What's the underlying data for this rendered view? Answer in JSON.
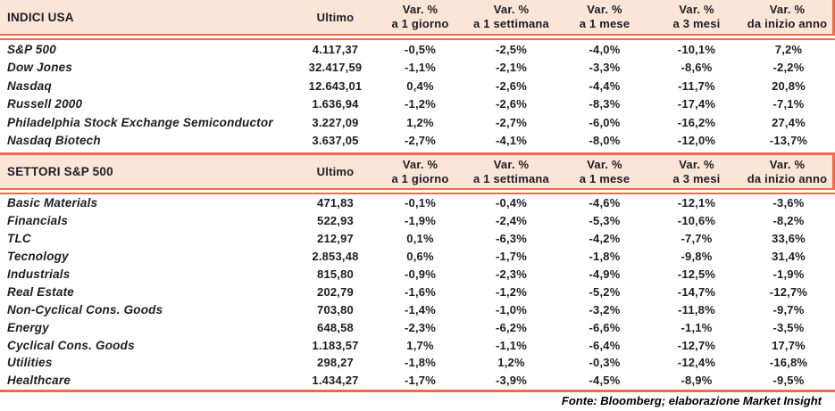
{
  "colors": {
    "band_bg": "#FBE5D6",
    "separator_line": "#F2694E",
    "text": "#1C1C26"
  },
  "footer": "Fonte: Bloomberg; elaborazione Market Insight",
  "chart_data": [
    {
      "type": "table",
      "title": "INDICI USA",
      "ultimo_label": "Ultimo",
      "var_label": "Var. %",
      "period_labels": [
        "a 1 giorno",
        "a 1 settimana",
        "a 1 mese",
        "a 3 mesi",
        "da inizio anno"
      ],
      "rows": [
        {
          "name": "S&P 500",
          "ultimo": "4.117,37",
          "vars": [
            "-0,5%",
            "-2,5%",
            "-4,0%",
            "-10,1%",
            "7,2%"
          ]
        },
        {
          "name": "Dow Jones",
          "ultimo": "32.417,59",
          "vars": [
            "-1,1%",
            "-2,1%",
            "-3,3%",
            "-8,6%",
            "-2,2%"
          ]
        },
        {
          "name": "Nasdaq",
          "ultimo": "12.643,01",
          "vars": [
            "0,4%",
            "-2,6%",
            "-4,4%",
            "-11,7%",
            "20,8%"
          ]
        },
        {
          "name": "Russell 2000",
          "ultimo": "1.636,94",
          "vars": [
            "-1,2%",
            "-2,6%",
            "-8,3%",
            "-17,4%",
            "-7,1%"
          ]
        },
        {
          "name": "Philadelphia Stock Exchange Semiconductor",
          "ultimo": "3.227,09",
          "vars": [
            "1,2%",
            "-2,7%",
            "-6,0%",
            "-16,2%",
            "27,4%"
          ]
        },
        {
          "name": "Nasdaq Biotech",
          "ultimo": "3.637,05",
          "vars": [
            "-2,7%",
            "-4,1%",
            "-8,0%",
            "-12,0%",
            "-13,7%"
          ]
        }
      ]
    },
    {
      "type": "table",
      "title": "SETTORI S&P 500",
      "ultimo_label": "Ultimo",
      "var_label": "Var. %",
      "period_labels": [
        "a 1 giorno",
        "a 1 settimana",
        "a 1 mese",
        "a 3 mesi",
        "da inizio anno"
      ],
      "rows": [
        {
          "name": "Basic Materials",
          "ultimo": "471,83",
          "vars": [
            "-0,1%",
            "-0,4%",
            "-4,6%",
            "-12,1%",
            "-3,6%"
          ]
        },
        {
          "name": "Financials",
          "ultimo": "522,93",
          "vars": [
            "-1,9%",
            "-2,4%",
            "-5,3%",
            "-10,6%",
            "-8,2%"
          ]
        },
        {
          "name": "TLC",
          "ultimo": "212,97",
          "vars": [
            "0,1%",
            "-6,3%",
            "-4,2%",
            "-7,7%",
            "33,6%"
          ]
        },
        {
          "name": "Tecnology",
          "ultimo": "2.853,48",
          "vars": [
            "0,6%",
            "-1,7%",
            "-1,8%",
            "-9,8%",
            "31,4%"
          ]
        },
        {
          "name": "Industrials",
          "ultimo": "815,80",
          "vars": [
            "-0,9%",
            "-2,3%",
            "-4,9%",
            "-12,5%",
            "-1,9%"
          ]
        },
        {
          "name": "Real Estate",
          "ultimo": "202,79",
          "vars": [
            "-1,6%",
            "-1,2%",
            "-5,2%",
            "-14,7%",
            "-12,7%"
          ]
        },
        {
          "name": "Non-Cyclical Cons. Goods",
          "ultimo": "703,80",
          "vars": [
            "-1,4%",
            "-1,0%",
            "-3,2%",
            "-11,8%",
            "-9,7%"
          ]
        },
        {
          "name": "Energy",
          "ultimo": "648,58",
          "vars": [
            "-2,3%",
            "-6,2%",
            "-6,6%",
            "-1,1%",
            "-3,5%"
          ]
        },
        {
          "name": "Cyclical Cons. Goods",
          "ultimo": "1.183,57",
          "vars": [
            "1,7%",
            "-1,1%",
            "-6,4%",
            "-12,7%",
            "17,7%"
          ]
        },
        {
          "name": "Utilities",
          "ultimo": "298,27",
          "vars": [
            "-1,8%",
            "1,2%",
            "-0,3%",
            "-12,4%",
            "-16,8%"
          ]
        },
        {
          "name": "Healthcare",
          "ultimo": "1.434,27",
          "vars": [
            "-1,7%",
            "-3,9%",
            "-4,5%",
            "-8,9%",
            "-9,5%"
          ]
        }
      ]
    }
  ]
}
